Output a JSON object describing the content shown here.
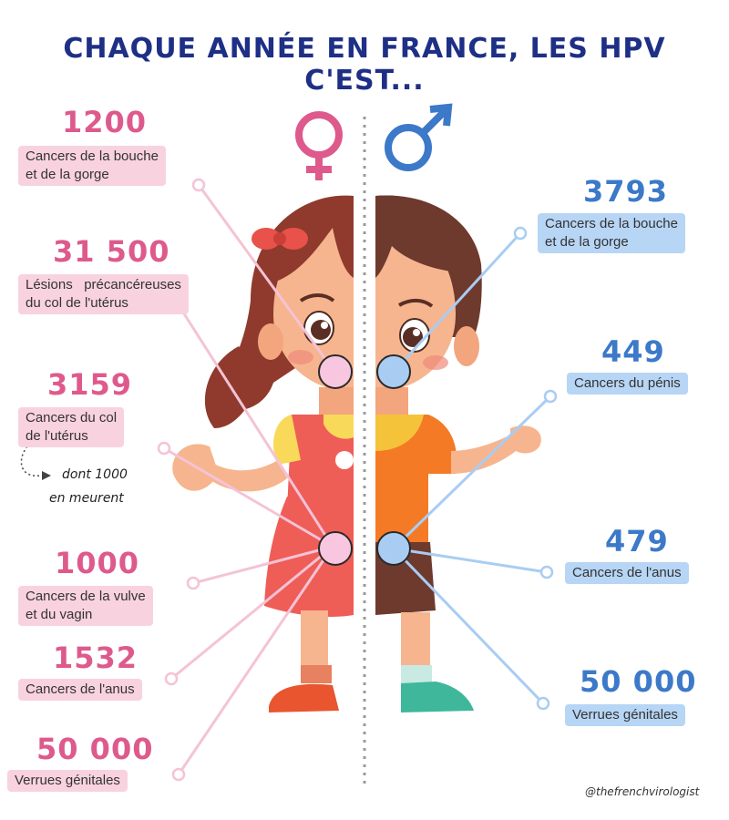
{
  "title": "CHAQUE ANNÉE EN FRANCE, LES HPV C'EST...",
  "female": {
    "symbol_icon": "female-venus-symbol-icon",
    "color": "#de5a8c",
    "stats": [
      {
        "value": "1200",
        "label_line1": "Cancers de la bouche",
        "label_line2": "et de la gorge"
      },
      {
        "value": "31 500",
        "label_line1": "Lésions   précancéreuses",
        "label_line2": "du col de l'utérus"
      },
      {
        "value": "3159",
        "label_line1": "Cancers du col",
        "label_line2": "de l'utérus"
      },
      {
        "value": "1000",
        "label_line1": "Cancers de la vulve",
        "label_line2": "et du vagin"
      },
      {
        "value": "1532",
        "label_line1": "Cancers de l'anus",
        "label_line2": ""
      },
      {
        "value": "50 000",
        "label_line1": "Verrues génitales",
        "label_line2": ""
      }
    ],
    "note_line1": "dont 1000",
    "note_line2": "en meurent"
  },
  "male": {
    "symbol_icon": "male-mars-symbol-icon",
    "color": "#3c79c8",
    "stats": [
      {
        "value": "3793",
        "label_line1": "Cancers de la bouche",
        "label_line2": "et de la gorge"
      },
      {
        "value": "449",
        "label_line1": "Cancers du pénis",
        "label_line2": ""
      },
      {
        "value": "479",
        "label_line1": "Cancers de l'anus",
        "label_line2": ""
      },
      {
        "value": "50 000",
        "label_line1": "Verrues génitales",
        "label_line2": ""
      }
    ]
  },
  "credit": "@thefrenchvirologist"
}
